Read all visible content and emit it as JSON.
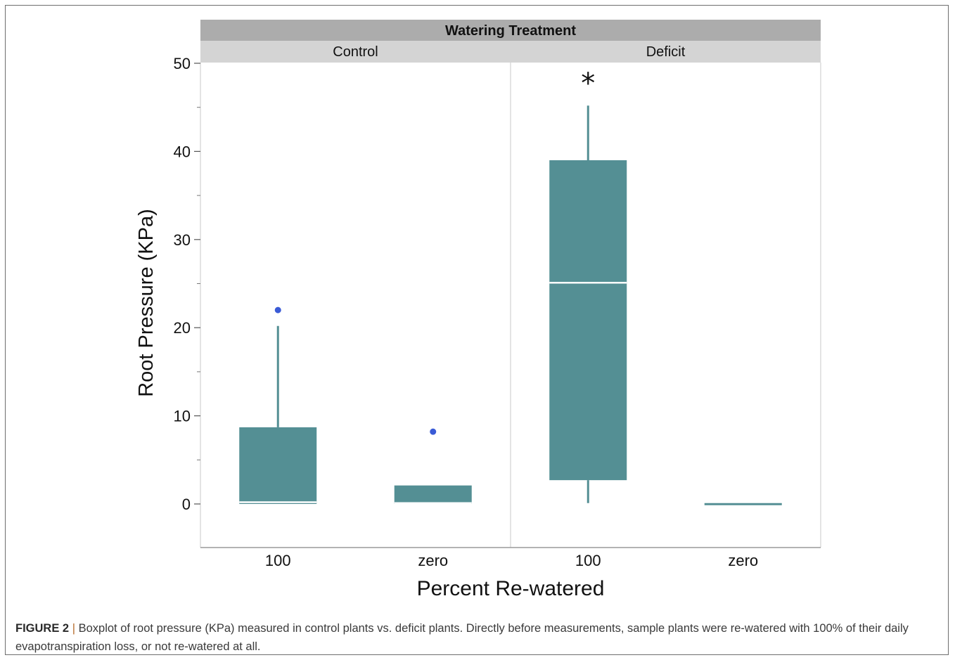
{
  "chart_data": {
    "type": "boxplot",
    "title": "Watering Treatment",
    "xlabel": "Percent Re-watered",
    "ylabel": "Root Pressure (KPa)",
    "ylim": [
      -5,
      51
    ],
    "yticks": [
      0,
      10,
      20,
      30,
      40,
      50
    ],
    "yticks_minor": [
      5,
      15,
      25,
      35,
      45
    ],
    "grid": false,
    "panels": [
      {
        "name": "Control",
        "categories": [
          "100",
          "zero"
        ],
        "boxes": [
          {
            "category": "100",
            "min": 0.0,
            "q1": 0.0,
            "median": 0.2,
            "q3": 8.7,
            "max": 20.2,
            "outliers": [
              22.0
            ]
          },
          {
            "category": "zero",
            "min": 0.0,
            "q1": 0.0,
            "median": 0.1,
            "q3": 2.1,
            "max": 2.1,
            "outliers": [
              8.2
            ]
          }
        ],
        "annotations": []
      },
      {
        "name": "Deficit",
        "categories": [
          "100",
          "zero"
        ],
        "boxes": [
          {
            "category": "100",
            "min": 0.1,
            "q1": 2.7,
            "median": 25.1,
            "q3": 39.0,
            "max": 45.2,
            "outliers": []
          },
          {
            "category": "zero",
            "min": 0.1,
            "q1": 0.1,
            "median": 0.1,
            "q3": 0.1,
            "max": 0.1,
            "outliers": []
          }
        ],
        "annotations": [
          {
            "category": "100",
            "text": "*"
          }
        ]
      }
    ],
    "colors": {
      "box": "#548f94",
      "outlier": "#3a5bd6",
      "header_title_bg": "#acacac",
      "header_panel_bg": "#d4d4d4",
      "median_line": "#ffffff"
    }
  },
  "caption": {
    "label": "FIGURE 2",
    "separator": "|",
    "text": "Boxplot of root pressure (KPa) measured in control plants vs. deficit plants. Directly before measurements, sample plants were re-watered with 100% of their daily evapotranspiration loss, or not re-watered at all."
  }
}
